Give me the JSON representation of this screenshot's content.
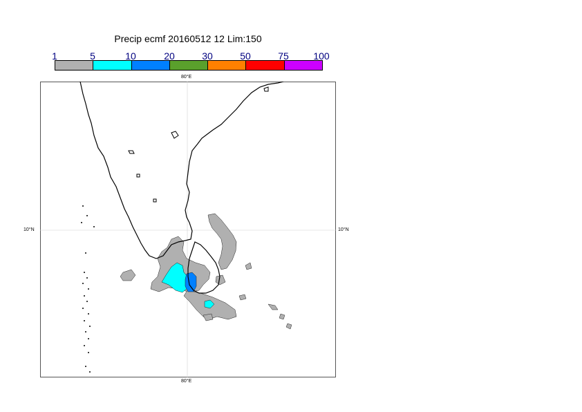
{
  "title": "Precip ecmf 20160512 12 Lim:150",
  "legend": {
    "boundaries": [
      "1",
      "5",
      "10",
      "20",
      "30",
      "50",
      "75",
      "100"
    ],
    "colors": [
      "#b0b0b0",
      "#00ffff",
      "#0080ff",
      "#5aa02c",
      "#ff8000",
      "#ff0000",
      "#cc00ff"
    ]
  },
  "map": {
    "top_lon_label": "80°E",
    "bottom_lon_label": "80°E",
    "left_lat_label": "10°N",
    "right_lat_label": "10°N",
    "gridline_color": "#d0d0d0",
    "coast_color": "#000000"
  }
}
